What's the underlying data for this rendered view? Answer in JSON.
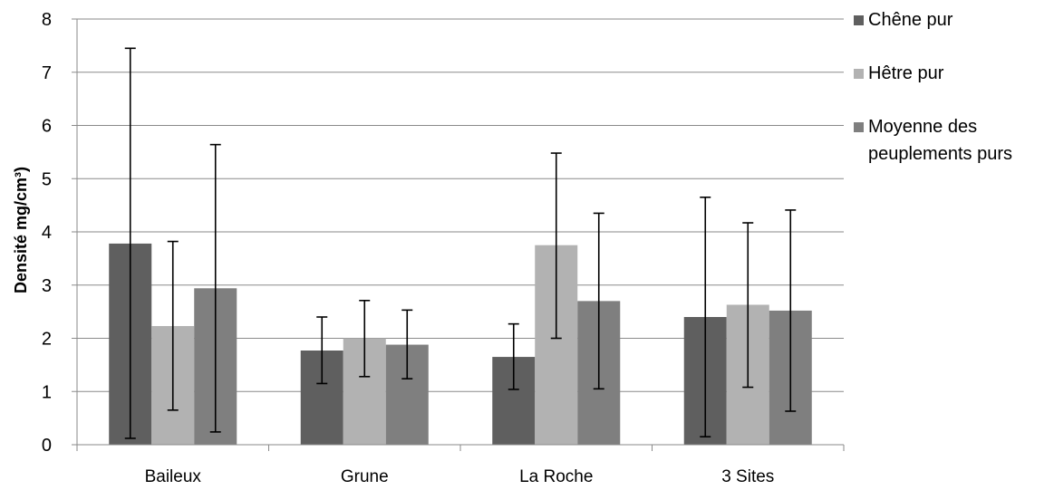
{
  "chart_data": {
    "type": "bar",
    "title": "",
    "xlabel": "",
    "ylabel": "Densité mg/cm³)",
    "ylim": [
      0,
      8
    ],
    "yticks": [
      "0",
      "1",
      "2",
      "3",
      "4",
      "5",
      "6",
      "7",
      "8"
    ],
    "grid": true,
    "legend_position": "right",
    "categories": [
      "Baileux",
      "Grune",
      "La Roche",
      "3 Sites"
    ],
    "series": [
      {
        "name": "Chêne pur",
        "color": "#5f5f5f",
        "values": [
          3.78,
          1.77,
          1.65,
          2.4
        ],
        "error_low": [
          0.12,
          1.15,
          1.04,
          0.15
        ],
        "error_high": [
          7.45,
          2.4,
          2.27,
          4.65
        ]
      },
      {
        "name": "Hêtre pur",
        "color": "#b2b2b2",
        "values": [
          2.23,
          2.0,
          3.75,
          2.63
        ],
        "error_low": [
          0.65,
          1.28,
          2.0,
          1.08
        ],
        "error_high": [
          3.82,
          2.71,
          5.48,
          4.17
        ]
      },
      {
        "name": "Moyenne des peuplements purs",
        "legend_lines": [
          "Moyenne des",
          "peuplements purs"
        ],
        "color": "#7f7f7f",
        "values": [
          2.94,
          1.88,
          2.7,
          2.52
        ],
        "error_low": [
          0.24,
          1.24,
          1.05,
          0.63
        ],
        "error_high": [
          5.64,
          2.53,
          4.35,
          4.41
        ]
      }
    ]
  }
}
